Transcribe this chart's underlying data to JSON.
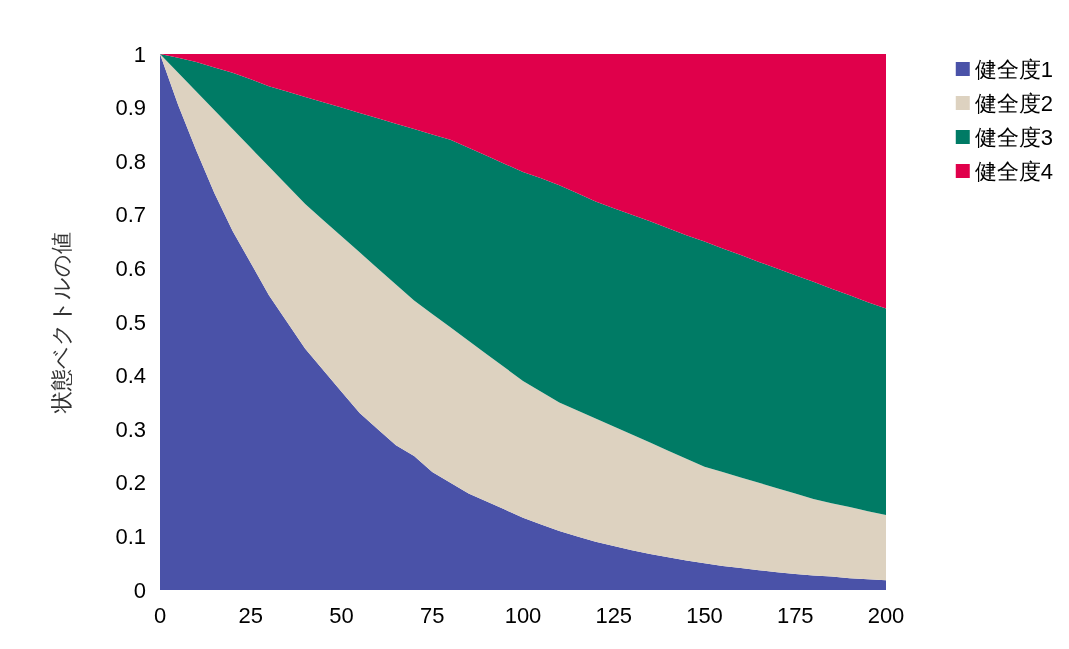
{
  "chart_data": {
    "type": "area",
    "stacked": true,
    "ylabel": "状態ベクトルの値",
    "x": [
      0,
      5,
      10,
      15,
      20,
      25,
      30,
      35,
      40,
      45,
      50,
      55,
      60,
      65,
      70,
      75,
      80,
      85,
      90,
      95,
      100,
      105,
      110,
      115,
      120,
      125,
      130,
      135,
      140,
      145,
      150,
      155,
      160,
      165,
      170,
      175,
      180,
      185,
      190,
      195,
      200
    ],
    "series": [
      {
        "name": "健全度1",
        "color": "#4a52a8",
        "values": [
          1,
          0.905,
          0.82,
          0.74,
          0.67,
          0.61,
          0.55,
          0.5,
          0.45,
          0.41,
          0.37,
          0.33,
          0.3,
          0.27,
          0.25,
          0.22,
          0.2,
          0.18,
          0.165,
          0.15,
          0.135,
          0.122,
          0.11,
          0.1,
          0.09,
          0.082,
          0.074,
          0.067,
          0.061,
          0.055,
          0.05,
          0.045,
          0.041,
          0.037,
          0.033,
          0.03,
          0.027,
          0.025,
          0.022,
          0.02,
          0.018
        ]
      },
      {
        "name": "健全度2",
        "color": "#ddd2c0",
        "values": [
          0,
          0.06,
          0.11,
          0.155,
          0.19,
          0.215,
          0.24,
          0.255,
          0.27,
          0.28,
          0.29,
          0.3,
          0.3,
          0.3,
          0.29,
          0.295,
          0.29,
          0.285,
          0.275,
          0.265,
          0.255,
          0.248,
          0.24,
          0.235,
          0.23,
          0.223,
          0.216,
          0.208,
          0.199,
          0.19,
          0.18,
          0.175,
          0.169,
          0.163,
          0.157,
          0.15,
          0.143,
          0.137,
          0.133,
          0.127,
          0.122
        ]
      },
      {
        "name": "健全度3",
        "color": "#007b65",
        "values": [
          0,
          0.028,
          0.055,
          0.08,
          0.105,
          0.128,
          0.15,
          0.175,
          0.2,
          0.22,
          0.24,
          0.26,
          0.28,
          0.3,
          0.32,
          0.335,
          0.35,
          0.36,
          0.37,
          0.38,
          0.39,
          0.398,
          0.405,
          0.405,
          0.405,
          0.407,
          0.41,
          0.413,
          0.415,
          0.417,
          0.42,
          0.417,
          0.415,
          0.412,
          0.41,
          0.407,
          0.405,
          0.4,
          0.395,
          0.39,
          0.385
        ]
      },
      {
        "name": "健全度4",
        "color": "#e0004b",
        "values": [
          0,
          0.007,
          0.015,
          0.025,
          0.035,
          0.047,
          0.06,
          0.07,
          0.08,
          0.09,
          0.1,
          0.11,
          0.12,
          0.13,
          0.14,
          0.15,
          0.16,
          0.175,
          0.19,
          0.205,
          0.22,
          0.232,
          0.245,
          0.26,
          0.275,
          0.288,
          0.3,
          0.312,
          0.325,
          0.338,
          0.35,
          0.363,
          0.375,
          0.388,
          0.4,
          0.413,
          0.425,
          0.438,
          0.45,
          0.463,
          0.475
        ]
      }
    ],
    "xlim": [
      0,
      200
    ],
    "xticks": [
      0,
      25,
      50,
      75,
      100,
      125,
      150,
      175,
      200
    ],
    "ylim": [
      0,
      1
    ],
    "yticks": [
      0,
      0.1,
      0.2,
      0.3,
      0.4,
      0.5,
      0.6,
      0.7,
      0.8,
      0.9,
      1
    ],
    "grid": false,
    "legend": "top right"
  }
}
